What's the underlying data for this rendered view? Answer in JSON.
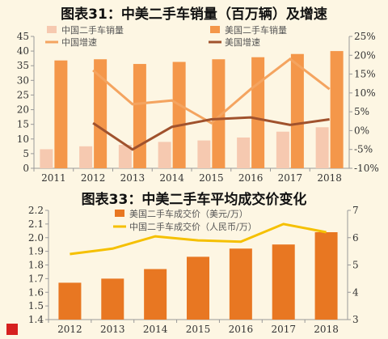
{
  "chart_data": [
    {
      "type": "bar",
      "title": "图表31：中美二手车销量（百万辆）及增速",
      "categories": [
        "2011",
        "2012",
        "2013",
        "2014",
        "2015",
        "2016",
        "2017",
        "2018"
      ],
      "series": [
        {
          "name": "中国二手车销量",
          "kind": "bar",
          "axis": "left",
          "color": "#f6c9b0",
          "values": [
            6.5,
            7.5,
            8.0,
            9.0,
            9.5,
            10.5,
            12.5,
            14.0
          ]
        },
        {
          "name": "美国二手车销量",
          "kind": "bar",
          "axis": "left",
          "color": "#f4974a",
          "values": [
            36.8,
            37.2,
            35.6,
            36.3,
            37.2,
            37.9,
            39.0,
            40.0
          ]
        },
        {
          "name": "中国增速",
          "kind": "line",
          "axis": "right",
          "color": "#f4a460",
          "values": [
            null,
            16,
            7,
            8,
            2,
            11,
            19,
            11
          ]
        },
        {
          "name": "美国增速",
          "kind": "line",
          "axis": "right",
          "color": "#a0522d",
          "values": [
            null,
            2,
            -5,
            1,
            3,
            3.5,
            1.5,
            3
          ]
        }
      ],
      "ylim": [
        0,
        45
      ],
      "yticks": [
        "0",
        "5",
        "10",
        "15",
        "20",
        "25",
        "30",
        "35",
        "40",
        "45"
      ],
      "y2lim": [
        -10,
        25
      ],
      "y2ticks": [
        "-10%",
        "-5%",
        "0%",
        "5%",
        "10%",
        "15%",
        "20%",
        "25%"
      ],
      "legend": "top",
      "grid": false
    },
    {
      "type": "bar",
      "title": "图表33：中美二手车平均成交价变化",
      "categories": [
        "2012",
        "2013",
        "2014",
        "2015",
        "2016",
        "2017",
        "2018"
      ],
      "series": [
        {
          "name": "美国二手车成交价（美元/万）",
          "kind": "bar",
          "axis": "left",
          "color": "#e87722",
          "values": [
            1.67,
            1.7,
            1.77,
            1.86,
            1.92,
            1.95,
            2.04
          ]
        },
        {
          "name": "中国二手车成交价（人民币/万）",
          "kind": "line",
          "axis": "right",
          "color": "#f5c000",
          "values": [
            5.4,
            5.6,
            6.05,
            5.9,
            5.85,
            6.5,
            6.2
          ]
        }
      ],
      "ylim": [
        1.4,
        2.2
      ],
      "yticks": [
        "1.4",
        "1.5",
        "1.6",
        "1.7",
        "1.8",
        "1.9",
        "2.0",
        "2.1",
        "2.2"
      ],
      "y2lim": [
        3,
        7
      ],
      "y2ticks": [
        "3",
        "4",
        "5",
        "6",
        "7"
      ],
      "legend": "top",
      "grid": false
    }
  ]
}
